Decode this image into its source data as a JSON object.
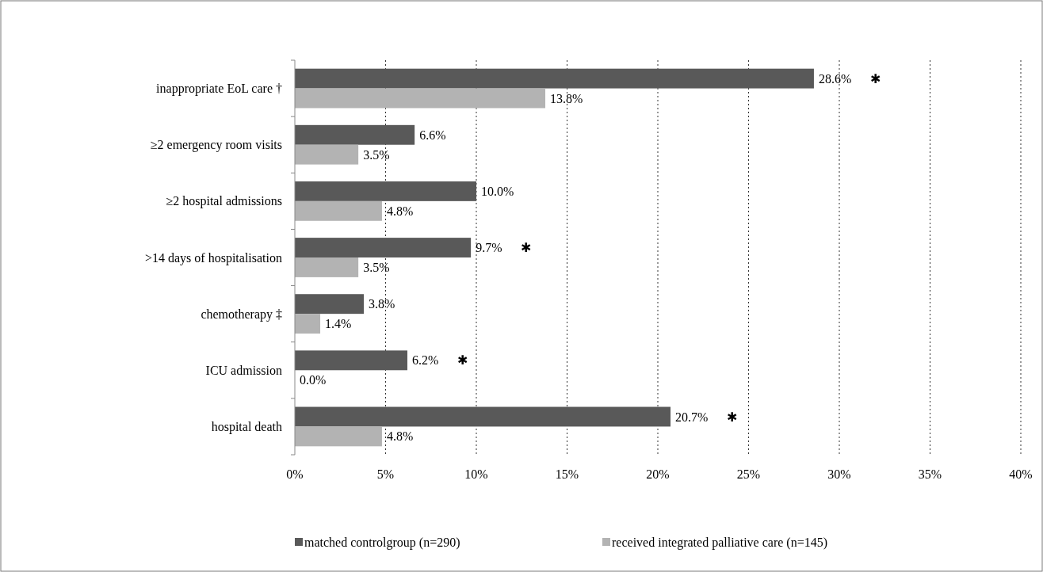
{
  "chart_data": {
    "type": "bar",
    "orientation": "horizontal",
    "categories": [
      "inappropriate EoL care †",
      "≥2 emergency room visits",
      "≥2 hospital admissions",
      ">14 days of hospitalisation",
      "chemotherapy ‡",
      "ICU admission",
      "hospital death"
    ],
    "series": [
      {
        "name": "matched controlgroup (n=290)",
        "color": "#595959",
        "values": [
          28.6,
          6.6,
          10.0,
          9.7,
          3.8,
          6.2,
          20.7
        ],
        "value_labels": [
          "28.6%      ✱",
          "6.6%",
          "10.0%",
          "9.7%      ✱",
          "3.8%",
          "6.2%      ✱",
          "20.7%      ✱"
        ]
      },
      {
        "name": "received integrated palliative care (n=145)",
        "color": "#b3b3b3",
        "values": [
          13.8,
          3.5,
          4.8,
          3.5,
          1.4,
          0.0,
          4.8
        ],
        "value_labels": [
          "13.8%",
          "3.5%",
          "4.8%",
          "3.5%",
          "1.4%",
          "0.0%",
          "4.8%"
        ]
      }
    ],
    "xlim": [
      0,
      40
    ],
    "xticks": [
      {
        "value": 0,
        "label": "0%"
      },
      {
        "value": 5,
        "label": "5%"
      },
      {
        "value": 10,
        "label": "10%"
      },
      {
        "value": 15,
        "label": "15%"
      },
      {
        "value": 20,
        "label": "20%"
      },
      {
        "value": 25,
        "label": "25%"
      },
      {
        "value": 30,
        "label": "30%"
      },
      {
        "value": 35,
        "label": "35%"
      },
      {
        "value": 40,
        "label": "40%"
      }
    ],
    "grid": "x",
    "legend": "bottom"
  }
}
